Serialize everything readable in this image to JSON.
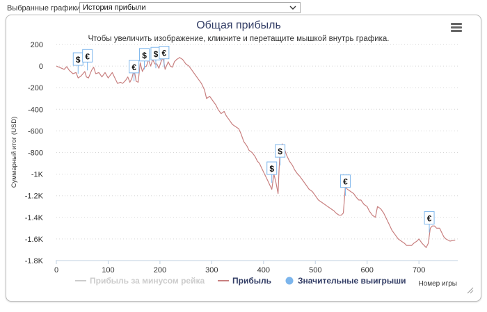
{
  "toolbar": {
    "select_label": "Выбранные графики:",
    "select_value": "История прибыли"
  },
  "menu_icon": "hamburger-menu-icon",
  "colors": {
    "profit_line": "#c87f7f",
    "rake_line": "#cccccc",
    "marker_dot": "#7cb5ec",
    "title": "#333e66"
  },
  "chart_data": {
    "type": "line",
    "title": "Общая прибыль",
    "subtitle": "Чтобы увеличить изображение, кликните и перетащите мышкой внутрь графика.",
    "ylabel": "Суммарный итог (USD)",
    "xlabel": "Номер игры",
    "xlim": [
      0,
      775
    ],
    "ylim": [
      -1800,
      200
    ],
    "x_ticks": [
      "0",
      "100",
      "200",
      "300",
      "400",
      "500",
      "600",
      "700"
    ],
    "y_ticks": [
      "200",
      "0",
      "-200",
      "-400",
      "-600",
      "-800",
      "-1K",
      "-1.2K",
      "-1.4K",
      "-1.6K",
      "-1.8K"
    ],
    "grid": true,
    "legend_position": "bottom",
    "series": [
      {
        "name": "Прибыль за минусом рейка",
        "visible": false,
        "points": []
      },
      {
        "name": "Прибыль",
        "points": [
          [
            0,
            0
          ],
          [
            10,
            -20
          ],
          [
            15,
            -30
          ],
          [
            20,
            -5
          ],
          [
            25,
            -40
          ],
          [
            32,
            -70
          ],
          [
            38,
            -60
          ],
          [
            42,
            -110
          ],
          [
            48,
            -90
          ],
          [
            55,
            -50
          ],
          [
            58,
            -100
          ],
          [
            62,
            -110
          ],
          [
            68,
            -40
          ],
          [
            72,
            -10
          ],
          [
            76,
            -70
          ],
          [
            82,
            -60
          ],
          [
            88,
            -100
          ],
          [
            94,
            -60
          ],
          [
            100,
            -110
          ],
          [
            108,
            -60
          ],
          [
            112,
            -100
          ],
          [
            118,
            -160
          ],
          [
            124,
            -150
          ],
          [
            128,
            -160
          ],
          [
            134,
            -130
          ],
          [
            138,
            -100
          ],
          [
            142,
            -150
          ],
          [
            146,
            -110
          ],
          [
            150,
            -30
          ],
          [
            154,
            -140
          ],
          [
            158,
            -150
          ],
          [
            162,
            30
          ],
          [
            166,
            -50
          ],
          [
            170,
            -10
          ],
          [
            174,
            0
          ],
          [
            178,
            60
          ],
          [
            182,
            0
          ],
          [
            186,
            60
          ],
          [
            190,
            20
          ],
          [
            194,
            20
          ],
          [
            198,
            -20
          ],
          [
            202,
            40
          ],
          [
            206,
            80
          ],
          [
            210,
            -30
          ],
          [
            216,
            40
          ],
          [
            220,
            0
          ],
          [
            224,
            -10
          ],
          [
            228,
            40
          ],
          [
            232,
            60
          ],
          [
            238,
            80
          ],
          [
            244,
            60
          ],
          [
            250,
            20
          ],
          [
            256,
            0
          ],
          [
            262,
            -40
          ],
          [
            268,
            -80
          ],
          [
            274,
            -120
          ],
          [
            280,
            -160
          ],
          [
            286,
            -220
          ],
          [
            290,
            -300
          ],
          [
            296,
            -280
          ],
          [
            302,
            -320
          ],
          [
            308,
            -360
          ],
          [
            312,
            -400
          ],
          [
            318,
            -440
          ],
          [
            324,
            -420
          ],
          [
            328,
            -460
          ],
          [
            334,
            -500
          ],
          [
            340,
            -540
          ],
          [
            346,
            -560
          ],
          [
            352,
            -580
          ],
          [
            356,
            -620
          ],
          [
            362,
            -700
          ],
          [
            368,
            -740
          ],
          [
            372,
            -780
          ],
          [
            378,
            -800
          ],
          [
            384,
            -840
          ],
          [
            388,
            -880
          ],
          [
            392,
            -900
          ],
          [
            396,
            -940
          ],
          [
            400,
            -980
          ],
          [
            404,
            -1020
          ],
          [
            408,
            -1060
          ],
          [
            412,
            -1100
          ],
          [
            416,
            -1140
          ],
          [
            420,
            -1000
          ],
          [
            424,
            -1080
          ],
          [
            428,
            -1180
          ],
          [
            430,
            -960
          ],
          [
            432,
            -780
          ],
          [
            436,
            -720
          ],
          [
            440,
            -760
          ],
          [
            444,
            -820
          ],
          [
            450,
            -880
          ],
          [
            456,
            -920
          ],
          [
            460,
            -960
          ],
          [
            466,
            -1000
          ],
          [
            470,
            -1020
          ],
          [
            476,
            -1060
          ],
          [
            482,
            -1100
          ],
          [
            488,
            -1140
          ],
          [
            494,
            -1160
          ],
          [
            500,
            -1200
          ],
          [
            506,
            -1240
          ],
          [
            512,
            -1260
          ],
          [
            518,
            -1280
          ],
          [
            524,
            -1300
          ],
          [
            530,
            -1320
          ],
          [
            536,
            -1340
          ],
          [
            540,
            -1360
          ],
          [
            546,
            -1380
          ],
          [
            550,
            -1380
          ],
          [
            554,
            -1360
          ],
          [
            558,
            -1120
          ],
          [
            562,
            -1140
          ],
          [
            568,
            -1160
          ],
          [
            574,
            -1180
          ],
          [
            580,
            -1220
          ],
          [
            584,
            -1240
          ],
          [
            588,
            -1240
          ],
          [
            594,
            -1280
          ],
          [
            600,
            -1300
          ],
          [
            604,
            -1340
          ],
          [
            610,
            -1380
          ],
          [
            616,
            -1400
          ],
          [
            620,
            -1300
          ],
          [
            626,
            -1320
          ],
          [
            632,
            -1360
          ],
          [
            636,
            -1400
          ],
          [
            640,
            -1440
          ],
          [
            644,
            -1480
          ],
          [
            648,
            -1520
          ],
          [
            654,
            -1560
          ],
          [
            660,
            -1600
          ],
          [
            666,
            -1620
          ],
          [
            672,
            -1640
          ],
          [
            676,
            -1660
          ],
          [
            680,
            -1660
          ],
          [
            686,
            -1660
          ],
          [
            690,
            -1640
          ],
          [
            696,
            -1620
          ],
          [
            700,
            -1600
          ],
          [
            706,
            -1640
          ],
          [
            710,
            -1660
          ],
          [
            714,
            -1680
          ],
          [
            718,
            -1640
          ],
          [
            722,
            -1500
          ],
          [
            726,
            -1480
          ],
          [
            730,
            -1480
          ],
          [
            734,
            -1500
          ],
          [
            740,
            -1500
          ],
          [
            744,
            -1540
          ],
          [
            748,
            -1580
          ],
          [
            752,
            -1600
          ],
          [
            756,
            -1610
          ],
          [
            760,
            -1620
          ],
          [
            765,
            -1615
          ],
          [
            770,
            -1610
          ]
        ]
      },
      {
        "name": "Значительные выигрыши",
        "markers": [
          {
            "x": 42,
            "y": -70,
            "label": "$"
          },
          {
            "x": 60,
            "y": -40,
            "label": "€"
          },
          {
            "x": 150,
            "y": -140,
            "label": "€"
          },
          {
            "x": 170,
            "y": -30,
            "label": "$"
          },
          {
            "x": 192,
            "y": -20,
            "label": "$"
          },
          {
            "x": 208,
            "y": -10,
            "label": "€"
          },
          {
            "x": 416,
            "y": -1080,
            "label": "$"
          },
          {
            "x": 432,
            "y": -920,
            "label": "$"
          },
          {
            "x": 558,
            "y": -1200,
            "label": "€"
          },
          {
            "x": 720,
            "y": -1540,
            "label": "€"
          }
        ]
      }
    ]
  }
}
